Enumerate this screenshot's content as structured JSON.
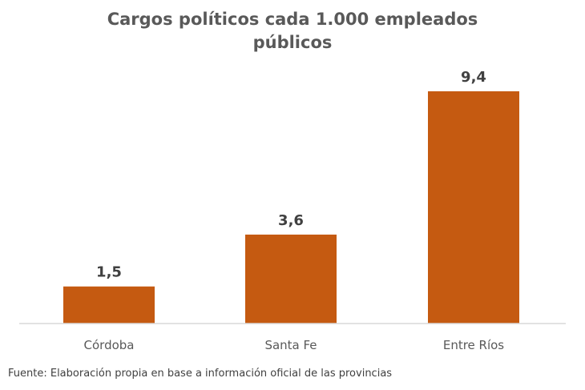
{
  "chart_data": {
    "type": "bar",
    "title_lines": [
      "Cargos políticos cada 1.000 empleados",
      "públicos"
    ],
    "categories": [
      "Córdoba",
      "Santa Fe",
      "Entre Ríos"
    ],
    "values": [
      1.5,
      3.6,
      9.4
    ],
    "value_labels": [
      "1,5",
      "3,6",
      "9,4"
    ],
    "xlabel": "",
    "ylabel": "",
    "ylim": [
      0,
      9.4
    ],
    "grid": false,
    "legend": "none",
    "bar_color": "#C55A11",
    "axis_color": "#d9d9d9"
  },
  "source": "Fuente: Elaboración propia en base a información oficial de las provincias"
}
